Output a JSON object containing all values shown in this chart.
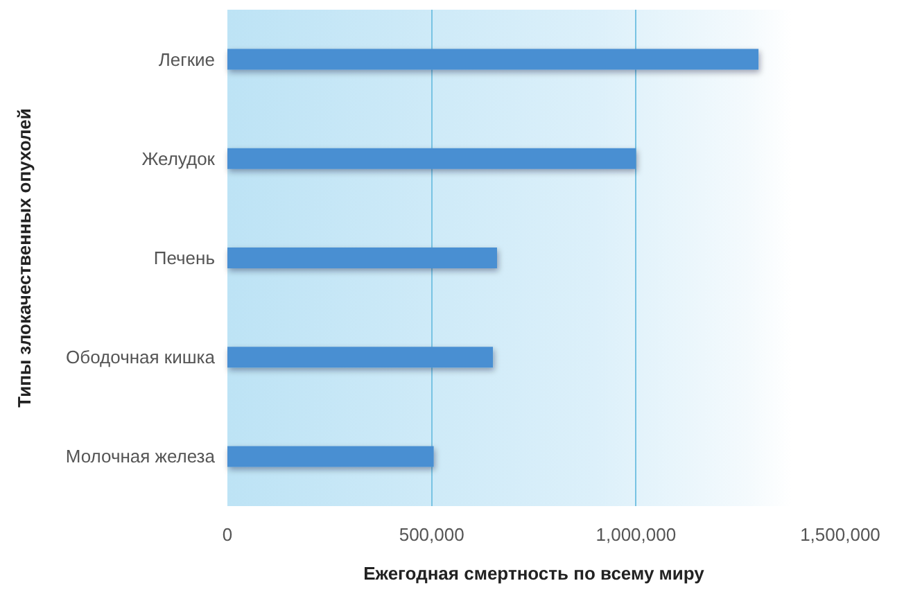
{
  "chart_data": {
    "type": "bar",
    "orientation": "horizontal",
    "categories": [
      "Легкие",
      "Желудок",
      "Печень",
      "Ободочная кишка",
      "Молочная железа"
    ],
    "values": [
      1300000,
      1000000,
      660000,
      650000,
      505000
    ],
    "color": "#4a8fd2",
    "xlim": [
      0,
      1500000
    ],
    "xticks": [
      0,
      {
        "value": 500000,
        "label": "500,000"
      },
      {
        "value": 1000000,
        "label": "1,000,000"
      },
      {
        "value": 1500000,
        "label": "1,500,000"
      }
    ],
    "xlabel": "Ежегодная смертность по всему миру",
    "ylabel": "Типы злокачественных опухолей",
    "grid": "x"
  }
}
